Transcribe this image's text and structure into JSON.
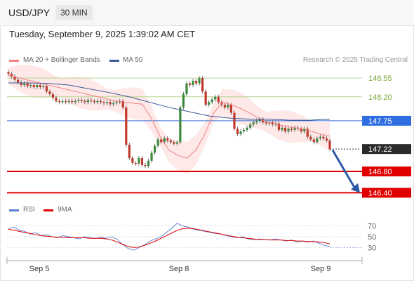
{
  "header": {
    "symbol": "USD/JPY",
    "timeframe": "30 MIN"
  },
  "timestamp": "Tuesday, September 9, 2025 1:39:02 AM CET",
  "legend": {
    "ma20_label": "MA 20 + Bollinger Bands",
    "ma50_label": "MA 50",
    "copyright": "Research © 2025 Trading Central",
    "colors": {
      "ma20": "#f08080",
      "ma50": "#3b5998",
      "bollinger_fill": "#fde0e0"
    }
  },
  "rsi_legend": {
    "rsi_label": "RSI",
    "ma_label": "9MA",
    "colors": {
      "rsi": "#5b7fd6",
      "ma": "#e00000"
    }
  },
  "chart_data": [
    {
      "type": "line",
      "title": "",
      "x_ticks": [
        "Sep 5",
        "Sep 8",
        "Sep 9"
      ],
      "ylim": [
        146.3,
        148.75
      ],
      "levels": [
        {
          "value": 148.55,
          "label": "148.55",
          "kind": "resistance",
          "color": "#b5d68c"
        },
        {
          "value": 148.2,
          "label": "148.20",
          "kind": "resistance",
          "color": "#b5d68c"
        },
        {
          "value": 147.75,
          "label": "147.75",
          "kind": "pivot",
          "color": "#3b6fd6"
        },
        {
          "value": 147.22,
          "label": "147.22",
          "kind": "last-price",
          "color": "#333333"
        },
        {
          "value": 146.8,
          "label": "146.80",
          "kind": "support",
          "color": "#e00000"
        },
        {
          "value": 146.4,
          "label": "146.40",
          "kind": "support",
          "color": "#e00000"
        }
      ],
      "candles_close": [
        148.63,
        148.58,
        148.52,
        148.47,
        148.42,
        148.45,
        148.4,
        148.42,
        148.38,
        148.42,
        148.38,
        148.4,
        148.3,
        148.25,
        148.18,
        148.12,
        148.1,
        148.12,
        148.1,
        148.12,
        148.1,
        148.12,
        148.14,
        148.12,
        148.1,
        148.14,
        148.12,
        148.1,
        148.12,
        148.1,
        148.08,
        148.1,
        148.06,
        148.08,
        148.1,
        148.12,
        148.0,
        147.3,
        147.05,
        146.96,
        146.95,
        147.05,
        146.92,
        146.9,
        147.0,
        147.15,
        147.28,
        147.4,
        147.35,
        147.42,
        147.38,
        147.35,
        147.32,
        147.35,
        148.0,
        148.25,
        148.45,
        148.42,
        148.5,
        148.45,
        148.55,
        148.3,
        148.05,
        148.1,
        148.15,
        148.2,
        148.1,
        148.05,
        148.0,
        148.05,
        147.9,
        147.6,
        147.5,
        147.55,
        147.58,
        147.62,
        147.68,
        147.72,
        147.75,
        147.78,
        147.72,
        147.7,
        147.72,
        147.68,
        147.7,
        147.58,
        147.62,
        147.55,
        147.6,
        147.58,
        147.62,
        147.6,
        147.55,
        147.6,
        147.45,
        147.4,
        147.35,
        147.42,
        147.45,
        147.42,
        147.38,
        147.22
      ],
      "ma20": [
        148.6,
        148.56,
        148.52,
        148.48,
        148.44,
        148.4,
        148.36,
        148.32,
        148.28,
        148.24,
        148.2,
        148.16,
        148.12,
        148.1,
        148.08,
        148.06,
        147.8,
        147.45,
        147.2,
        147.1,
        147.05,
        147.2,
        147.5,
        147.9,
        148.1,
        148.05,
        147.98,
        147.9,
        147.8,
        147.72,
        147.68,
        147.65,
        147.62,
        147.6,
        147.55,
        147.5,
        147.46
      ],
      "ma50": [
        148.46,
        148.46,
        148.45,
        148.42,
        148.35,
        148.28,
        148.2,
        148.1,
        148.0,
        147.92,
        147.84,
        147.8,
        147.78,
        147.78,
        147.76,
        147.76,
        147.78
      ],
      "series": [
        {
          "name": "MA 20 + Bollinger Bands"
        },
        {
          "name": "MA 50"
        }
      ]
    },
    {
      "type": "line",
      "title": "",
      "y_ticks": [
        70,
        50,
        30
      ],
      "ylim": [
        20,
        80
      ],
      "series": [
        {
          "name": "RSI",
          "values": [
            65,
            68,
            62,
            60,
            55,
            58,
            52,
            54,
            50,
            48,
            52,
            50,
            48,
            46,
            50,
            48,
            47,
            49,
            47,
            50,
            45,
            35,
            28,
            25,
            30,
            35,
            42,
            46,
            50,
            58,
            66,
            75,
            70,
            68,
            64,
            62,
            60,
            58,
            56,
            55,
            52,
            50,
            48,
            50,
            46,
            44,
            46,
            45,
            44,
            46,
            44,
            42,
            44,
            40,
            42,
            40,
            42,
            38,
            34,
            32
          ]
        },
        {
          "name": "9MA",
          "values": [
            64,
            62,
            60,
            58,
            56,
            54,
            52,
            51,
            50,
            49,
            49,
            48,
            48,
            48,
            48,
            47,
            47,
            47,
            46,
            44,
            40,
            36,
            32,
            30,
            31,
            34,
            38,
            42,
            47,
            52,
            57,
            62,
            65,
            66,
            65,
            63,
            61,
            59,
            57,
            55,
            53,
            51,
            49,
            48,
            47,
            46,
            45,
            45,
            44,
            44,
            44,
            43,
            43,
            42,
            42,
            41,
            41,
            40,
            39,
            37
          ]
        }
      ]
    }
  ]
}
